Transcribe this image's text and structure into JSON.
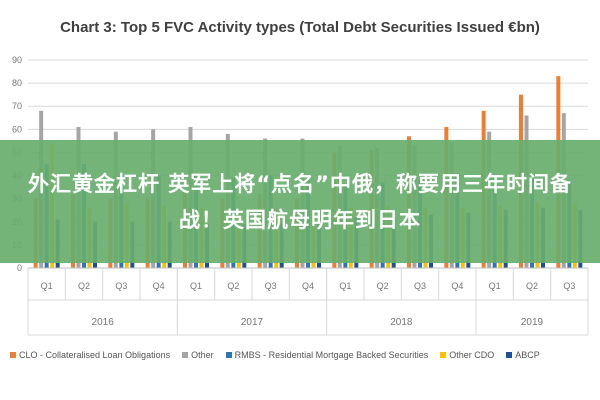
{
  "chart_data": {
    "type": "bar",
    "title": "Chart 3: Top 5 FVC Activity types (Total Debt Securities Issued €bn)",
    "ylim": [
      0,
      90
    ],
    "yticks": [
      0,
      10,
      20,
      30,
      40,
      50,
      60,
      70,
      80,
      90
    ],
    "grid": true,
    "legend_position": "bottom",
    "categories": [
      "Q1",
      "Q2",
      "Q3",
      "Q4",
      "Q1",
      "Q2",
      "Q3",
      "Q4",
      "Q1",
      "Q2",
      "Q3",
      "Q4",
      "Q1",
      "Q2",
      "Q3"
    ],
    "year_groups": [
      {
        "label": "2016",
        "count": 4
      },
      {
        "label": "2017",
        "count": 4
      },
      {
        "label": "2018",
        "count": 4
      },
      {
        "label": "2019",
        "count": 3
      }
    ],
    "series": [
      {
        "name": "CLO - Collateralised Loan Obligations",
        "color": "#ED7D31",
        "values": [
          30,
          32,
          30,
          30,
          33,
          30,
          32,
          30,
          50,
          51,
          57,
          61,
          68,
          75,
          83
        ]
      },
      {
        "name": "Other",
        "color": "#A5A5A5",
        "values": [
          68,
          61,
          59,
          60,
          61,
          58,
          56,
          56,
          53,
          52,
          53,
          54,
          59,
          66,
          67
        ]
      },
      {
        "name": "RMBS - Residential Mortgage Backed Securities",
        "color": "#2E75B6",
        "values": [
          45,
          45,
          40,
          40,
          40,
          39,
          40,
          39,
          36,
          37,
          38,
          41,
          40,
          39,
          38
        ]
      },
      {
        "name": "Other CDO",
        "color": "#FFC000",
        "values": [
          54,
          26,
          28,
          27,
          26,
          25,
          26,
          25,
          26,
          27,
          26,
          26,
          27,
          28,
          28
        ]
      },
      {
        "name": "ABCP",
        "color": "#1F4E9C",
        "values": [
          21,
          20,
          20,
          20,
          19,
          19,
          19,
          19,
          22,
          22,
          23,
          24,
          25,
          26,
          25
        ]
      }
    ]
  },
  "banner": {
    "text": "外汇黄金杠杆 英军上将“点名”中俄，称要用三年时间备战！英国航母明年到日本"
  }
}
